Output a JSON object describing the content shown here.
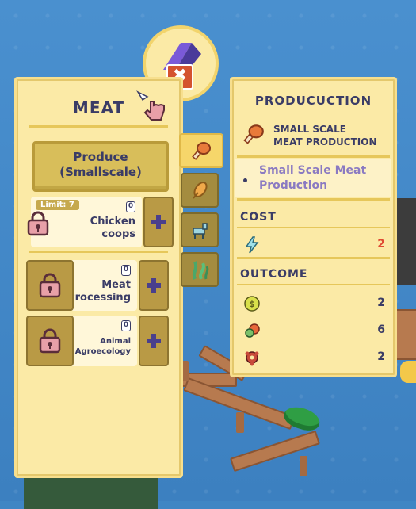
{
  "left_panel": {
    "title": "MEAT",
    "produce_button": "Produce\n(Smallscale)",
    "items": [
      {
        "label": "Chicken\ncoops",
        "limit": "Limit: 7",
        "count": "0"
      },
      {
        "label": "Meat\nProcessing",
        "count": "0"
      },
      {
        "label": "Animal\nAgroecology",
        "count": "0"
      }
    ]
  },
  "close_button": "✖",
  "right_panel": {
    "title": "PRODUCUCTION",
    "production_name": "SMALL SCALE\nMEAT PRODUCTION",
    "production_desc": "Small Scale Meat\nProduction",
    "cost_header": "COST",
    "cost_rows": [
      {
        "icon": "energy-bolt-icon",
        "value": "2",
        "color": "#e04a32"
      }
    ],
    "outcome_header": "OUTCOME",
    "outcome_rows": [
      {
        "icon": "coin-icon",
        "value": "2"
      },
      {
        "icon": "meat-icon",
        "value": "6"
      },
      {
        "icon": "pollution-icon",
        "value": "2"
      }
    ]
  },
  "tabs": [
    {
      "icon": "meat-drumstick-icon",
      "active": true
    },
    {
      "icon": "grain-icon"
    },
    {
      "icon": "goat-icon"
    },
    {
      "icon": "seaweed-icon"
    }
  ],
  "colors": {
    "panel_bg": "#fbeaa6",
    "text_dark": "#3a3c66",
    "accent_red": "#e04a32",
    "button_gold": "#b99a45"
  }
}
